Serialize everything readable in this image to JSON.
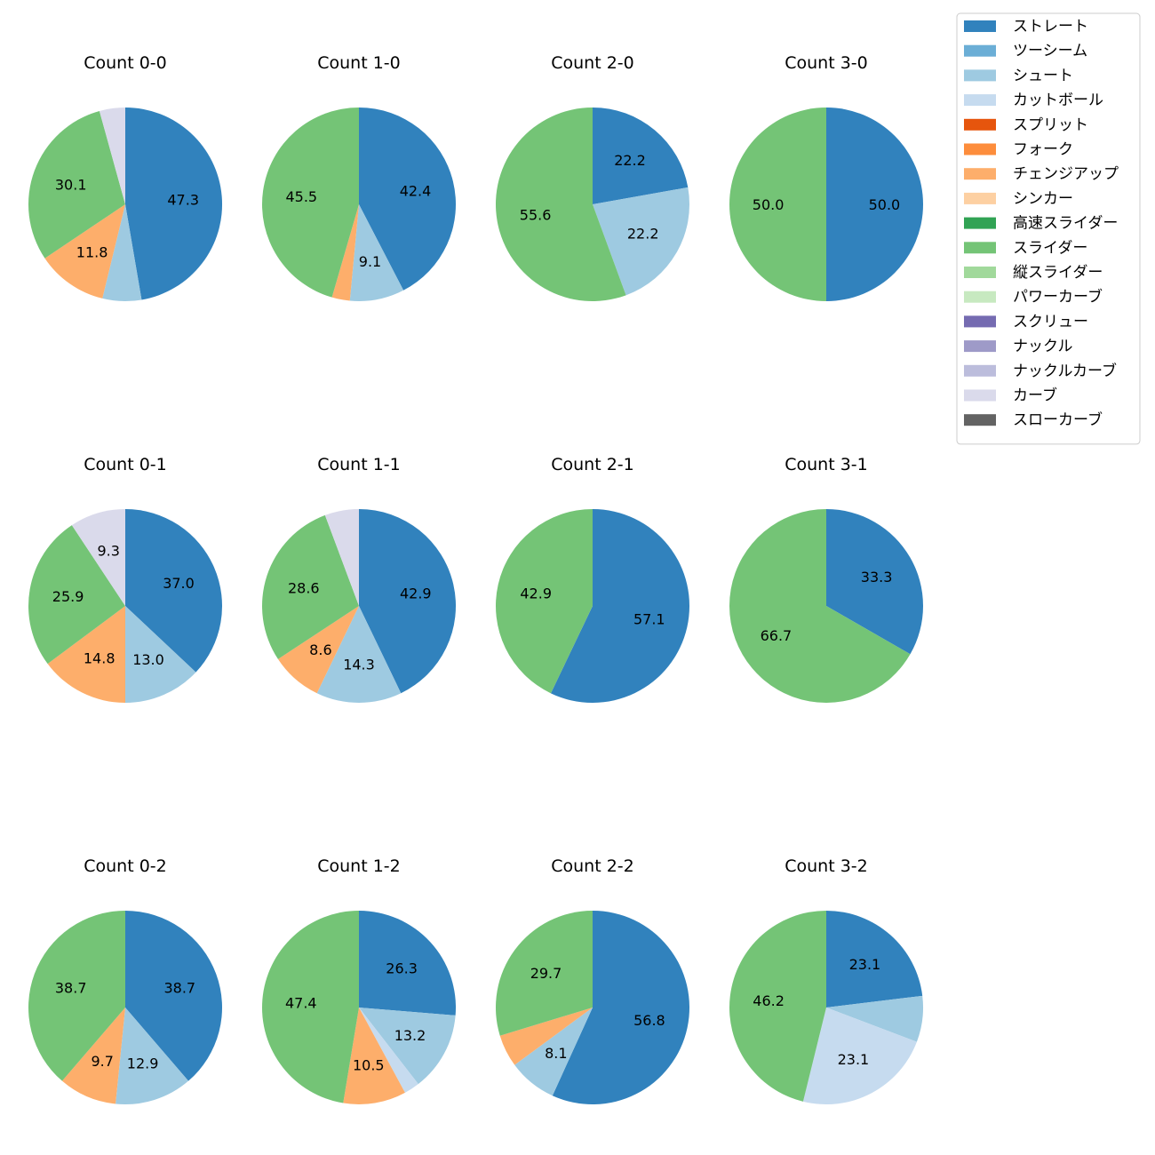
{
  "legend": {
    "labels": [
      "ストレート",
      "ツーシーム",
      "シュート",
      "カットボール",
      "スプリット",
      "フォーク",
      "チェンジアップ",
      "シンカー",
      "高速スライダー",
      "スライダー",
      "縦スライダー",
      "パワーカーブ",
      "スクリュー",
      "ナックル",
      "ナックルカーブ",
      "カーブ",
      "スローカーブ"
    ],
    "colors": [
      "#3182bd",
      "#6baed6",
      "#9ecae1",
      "#c6dbef",
      "#e6550d",
      "#fd8d3c",
      "#fdae6b",
      "#fdd0a2",
      "#31a354",
      "#74c476",
      "#a1d99b",
      "#c7e9c0",
      "#756bb1",
      "#9e9ac8",
      "#bcbddc",
      "#dadaeb",
      "#636363"
    ],
    "placement": "top-right"
  },
  "chart_data": [
    {
      "type": "pie",
      "title": "Count 0-0",
      "slices": [
        {
          "cat": 0,
          "value": 47.3,
          "label": "47.3"
        },
        {
          "cat": 2,
          "value": 6.5,
          "label": ""
        },
        {
          "cat": 6,
          "value": 11.8,
          "label": "11.8"
        },
        {
          "cat": 9,
          "value": 30.1,
          "label": "30.1"
        },
        {
          "cat": 15,
          "value": 4.3,
          "label": ""
        }
      ]
    },
    {
      "type": "pie",
      "title": "Count 1-0",
      "slices": [
        {
          "cat": 0,
          "value": 42.4,
          "label": "42.4"
        },
        {
          "cat": 2,
          "value": 9.1,
          "label": "9.1"
        },
        {
          "cat": 6,
          "value": 3.0,
          "label": ""
        },
        {
          "cat": 9,
          "value": 45.5,
          "label": "45.5"
        }
      ]
    },
    {
      "type": "pie",
      "title": "Count 2-0",
      "slices": [
        {
          "cat": 0,
          "value": 22.2,
          "label": "22.2"
        },
        {
          "cat": 2,
          "value": 22.2,
          "label": "22.2"
        },
        {
          "cat": 9,
          "value": 55.6,
          "label": "55.6"
        }
      ]
    },
    {
      "type": "pie",
      "title": "Count 3-0",
      "slices": [
        {
          "cat": 0,
          "value": 50.0,
          "label": "50.0"
        },
        {
          "cat": 9,
          "value": 50.0,
          "label": "50.0"
        }
      ]
    },
    {
      "type": "pie",
      "title": "Count 0-1",
      "slices": [
        {
          "cat": 0,
          "value": 37.0,
          "label": "37.0"
        },
        {
          "cat": 2,
          "value": 13.0,
          "label": "13.0"
        },
        {
          "cat": 6,
          "value": 14.8,
          "label": "14.8"
        },
        {
          "cat": 9,
          "value": 25.9,
          "label": "25.9"
        },
        {
          "cat": 15,
          "value": 9.3,
          "label": "9.3"
        }
      ]
    },
    {
      "type": "pie",
      "title": "Count 1-1",
      "slices": [
        {
          "cat": 0,
          "value": 42.9,
          "label": "42.9"
        },
        {
          "cat": 2,
          "value": 14.3,
          "label": "14.3"
        },
        {
          "cat": 6,
          "value": 8.6,
          "label": "8.6"
        },
        {
          "cat": 9,
          "value": 28.6,
          "label": "28.6"
        },
        {
          "cat": 15,
          "value": 5.7,
          "label": ""
        }
      ]
    },
    {
      "type": "pie",
      "title": "Count 2-1",
      "slices": [
        {
          "cat": 0,
          "value": 57.1,
          "label": "57.1"
        },
        {
          "cat": 9,
          "value": 42.9,
          "label": "42.9"
        }
      ]
    },
    {
      "type": "pie",
      "title": "Count 3-1",
      "slices": [
        {
          "cat": 0,
          "value": 33.3,
          "label": "33.3"
        },
        {
          "cat": 9,
          "value": 66.7,
          "label": "66.7"
        }
      ]
    },
    {
      "type": "pie",
      "title": "Count 0-2",
      "slices": [
        {
          "cat": 0,
          "value": 38.7,
          "label": "38.7"
        },
        {
          "cat": 2,
          "value": 12.9,
          "label": "12.9"
        },
        {
          "cat": 6,
          "value": 9.7,
          "label": "9.7"
        },
        {
          "cat": 9,
          "value": 38.7,
          "label": "38.7"
        }
      ]
    },
    {
      "type": "pie",
      "title": "Count 1-2",
      "slices": [
        {
          "cat": 0,
          "value": 26.3,
          "label": "26.3"
        },
        {
          "cat": 2,
          "value": 13.2,
          "label": "13.2"
        },
        {
          "cat": 3,
          "value": 2.6,
          "label": ""
        },
        {
          "cat": 6,
          "value": 10.5,
          "label": "10.5"
        },
        {
          "cat": 9,
          "value": 47.4,
          "label": "47.4"
        }
      ]
    },
    {
      "type": "pie",
      "title": "Count 2-2",
      "slices": [
        {
          "cat": 0,
          "value": 56.8,
          "label": "56.8"
        },
        {
          "cat": 2,
          "value": 8.1,
          "label": "8.1"
        },
        {
          "cat": 6,
          "value": 5.4,
          "label": ""
        },
        {
          "cat": 9,
          "value": 29.7,
          "label": "29.7"
        }
      ]
    },
    {
      "type": "pie",
      "title": "Count 3-2",
      "slices": [
        {
          "cat": 0,
          "value": 23.1,
          "label": "23.1"
        },
        {
          "cat": 2,
          "value": 7.7,
          "label": ""
        },
        {
          "cat": 3,
          "value": 23.1,
          "label": "23.1"
        },
        {
          "cat": 9,
          "value": 46.2,
          "label": "46.2"
        }
      ]
    }
  ]
}
